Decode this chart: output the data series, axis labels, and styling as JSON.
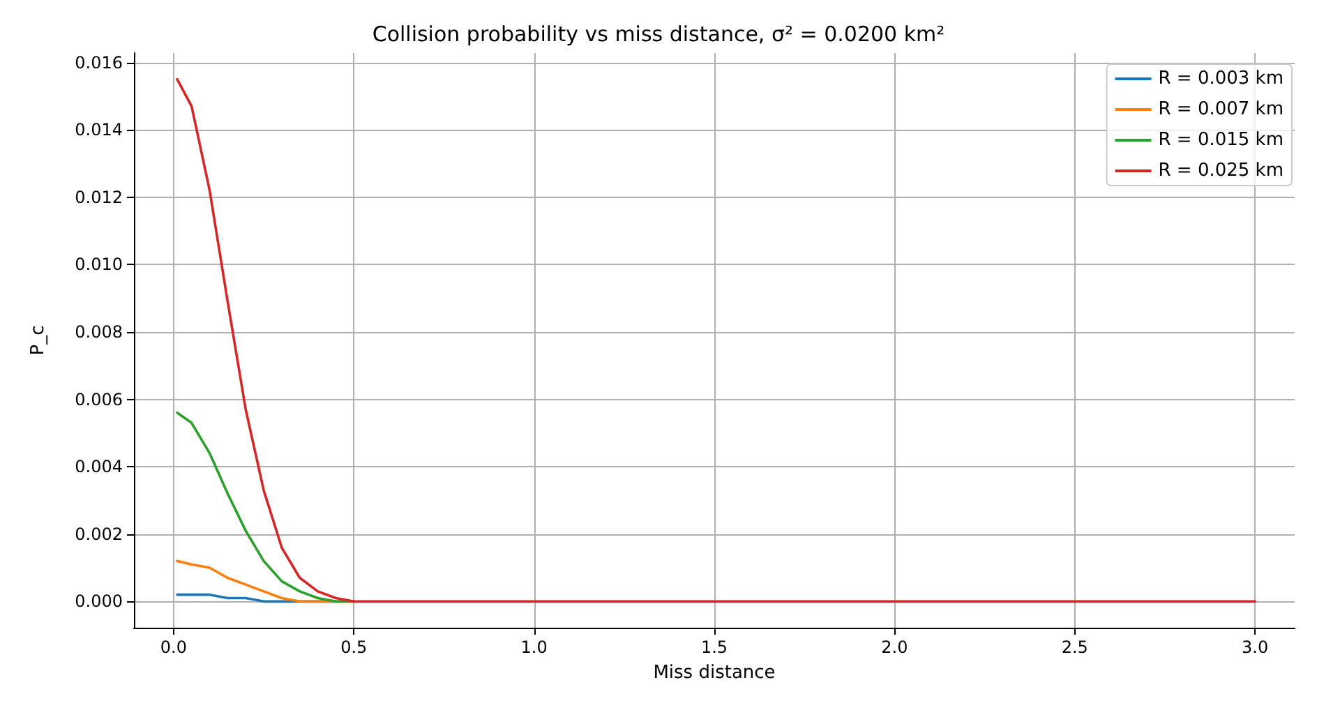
{
  "chart_data": {
    "type": "line",
    "title": "Collision probability vs miss distance, σ² = 0.0200 km²",
    "xlabel": "Miss distance",
    "ylabel": "P_c",
    "x": [
      0.01,
      0.05,
      0.1,
      0.15,
      0.2,
      0.25,
      0.3,
      0.35,
      0.4,
      0.45,
      0.5,
      0.6,
      1.0,
      1.5,
      2.0,
      2.5,
      3.0
    ],
    "series": [
      {
        "name": "R = 0.003 km",
        "color": "#1f77b4",
        "values": [
          0.0002,
          0.0002,
          0.0002,
          0.0001,
          0.0001,
          0,
          0,
          0,
          0,
          0,
          null,
          null,
          null,
          null,
          null,
          null,
          null
        ]
      },
      {
        "name": "R = 0.007 km",
        "color": "#ff7f0e",
        "values": [
          0.0012,
          0.0011,
          0.001,
          0.0007,
          0.0005,
          0.0003,
          0.0001,
          0,
          0,
          0,
          0,
          null,
          null,
          null,
          null,
          null,
          null
        ]
      },
      {
        "name": "R = 0.015 km",
        "color": "#2ca02c",
        "values": [
          0.0056,
          0.0053,
          0.0044,
          0.0032,
          0.0021,
          0.0012,
          0.0006,
          0.0003,
          0.0001,
          0,
          0,
          null,
          null,
          null,
          null,
          null,
          null
        ]
      },
      {
        "name": "R = 0.025 km",
        "color": "#d62728",
        "values": [
          0.0155,
          0.0147,
          0.0122,
          0.0089,
          0.0057,
          0.0033,
          0.0016,
          0.0007,
          0.0003,
          0.0001,
          0,
          0,
          0,
          0,
          0,
          0,
          0
        ]
      }
    ],
    "xlim": [
      -0.11,
      3.11
    ],
    "xticks": [
      {
        "value": 0,
        "label": "0.0"
      },
      {
        "value": 0.5,
        "label": "0.5"
      },
      {
        "value": 1,
        "label": "1.0"
      },
      {
        "value": 1.5,
        "label": "1.5"
      },
      {
        "value": 2,
        "label": "2.0"
      },
      {
        "value": 2.5,
        "label": "2.5"
      },
      {
        "value": 3,
        "label": "3.0"
      }
    ],
    "ylim": [
      -0.00078,
      0.01628
    ],
    "yticks": [
      {
        "value": 0,
        "label": "0.000"
      },
      {
        "value": 0.002,
        "label": "0.002"
      },
      {
        "value": 0.004,
        "label": "0.004"
      },
      {
        "value": 0.006,
        "label": "0.006"
      },
      {
        "value": 0.008,
        "label": "0.008"
      },
      {
        "value": 0.01,
        "label": "0.010"
      },
      {
        "value": 0.012,
        "label": "0.012"
      },
      {
        "value": 0.014,
        "label": "0.014"
      },
      {
        "value": 0.016,
        "label": "0.016"
      }
    ],
    "grid": true,
    "legend": "top right",
    "marker": "none",
    "line_style": "solid"
  }
}
